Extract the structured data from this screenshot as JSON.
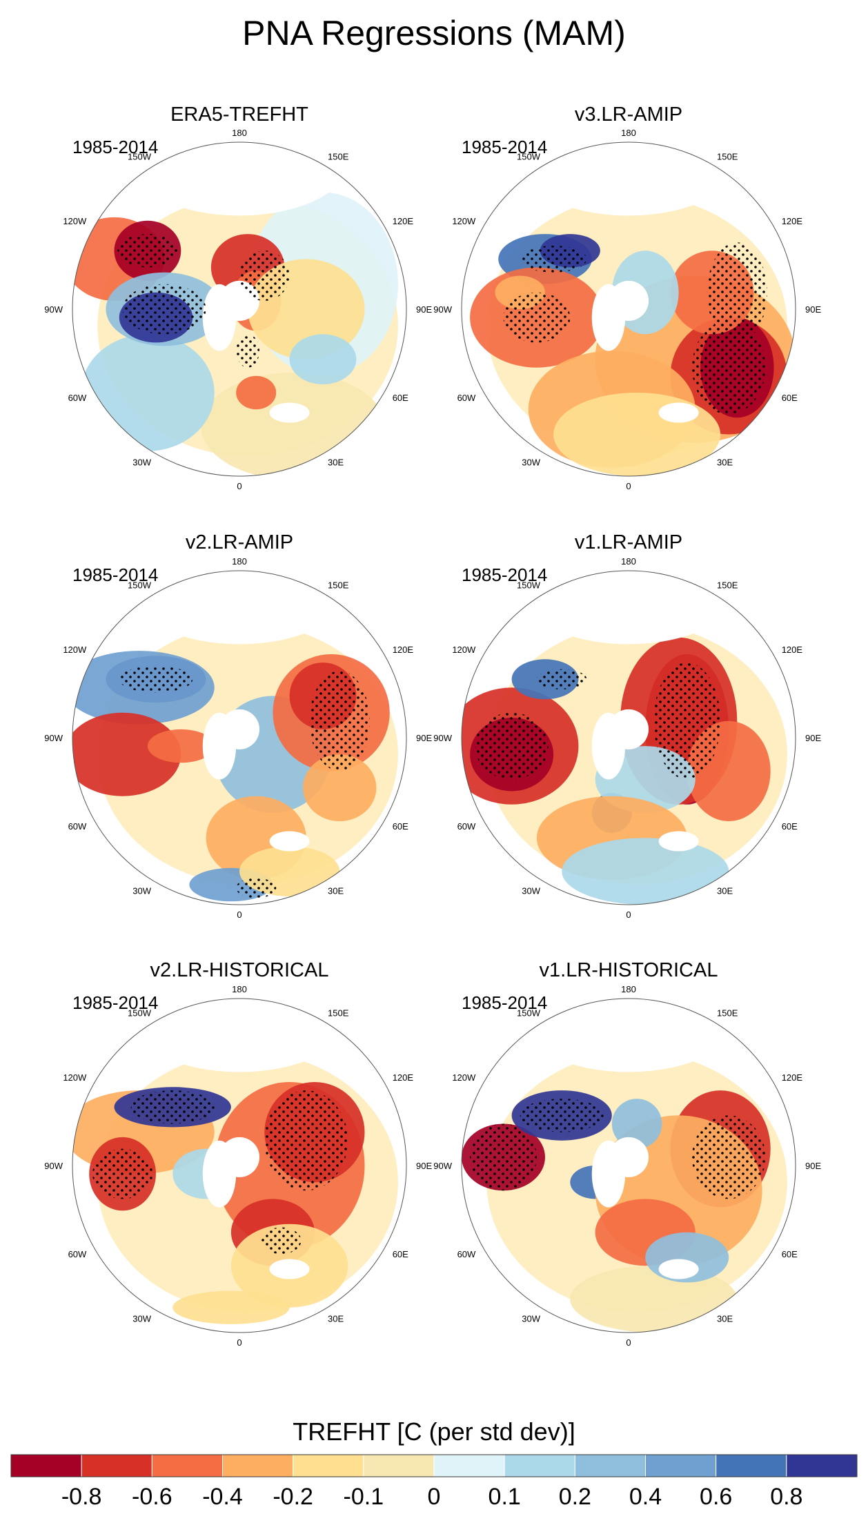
{
  "title": "PNA Regressions (MAM)",
  "colorbar": {
    "label": "TREFHT [C (per std dev)]",
    "colors": [
      "#a50026",
      "#d73027",
      "#f46d43",
      "#fdae61",
      "#fee090",
      "#f7e7b0",
      "#e0f3f8",
      "#abd9e9",
      "#8fbfdd",
      "#6fa0d0",
      "#4474b8",
      "#313695"
    ],
    "ticks": [
      "-0.8",
      "-0.6",
      "-0.4",
      "-0.2",
      "-0.1",
      "0",
      "0.1",
      "0.2",
      "0.4",
      "0.6",
      "0.8"
    ]
  },
  "panels": [
    {
      "title": "ERA5-TREFHT",
      "period": "1985-2014"
    },
    {
      "title": "v3.LR-AMIP",
      "period": "1985-2014"
    },
    {
      "title": "v2.LR-AMIP",
      "period": "1985-2014"
    },
    {
      "title": "v1.LR-AMIP",
      "period": "1985-2014"
    },
    {
      "title": "v2.LR-HISTORICAL",
      "period": "1985-2014"
    },
    {
      "title": "v1.LR-HISTORICAL",
      "period": "1985-2014"
    }
  ],
  "longitude_labels": [
    "180",
    "150E",
    "120E",
    "90E",
    "60E",
    "30E",
    "0",
    "30W",
    "60W",
    "90W",
    "120W",
    "150W"
  ],
  "chart_data": {
    "type": "heatmap",
    "projection": "north polar stereographic",
    "variable": "TREFHT",
    "units": "C (per std dev)",
    "season": "MAM",
    "period": "1985-2014",
    "contour_levels": [
      -0.8,
      -0.6,
      -0.4,
      -0.2,
      -0.1,
      0,
      0.1,
      0.2,
      0.4,
      0.6,
      0.8
    ],
    "panels": [
      "ERA5-TREFHT",
      "v3.LR-AMIP",
      "v2.LR-AMIP",
      "v1.LR-AMIP",
      "v2.LR-HISTORICAL",
      "v1.LR-HISTORICAL"
    ],
    "stippling": "statistically significant regions"
  }
}
